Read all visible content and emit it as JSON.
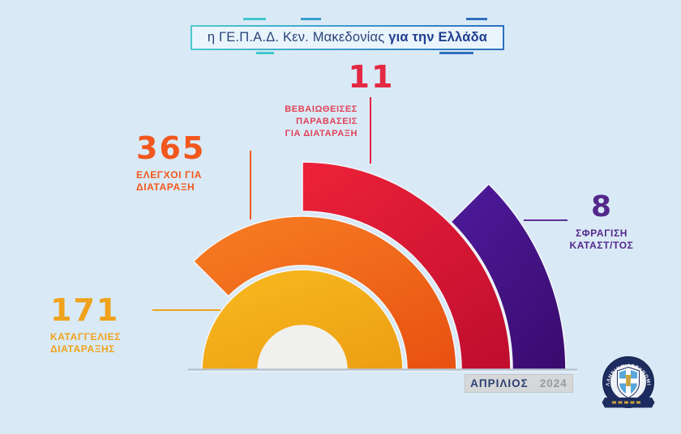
{
  "page": {
    "background": "#d9eaf6"
  },
  "title": {
    "prefix": "η ΓΕ.Π.Α.Δ. Κεν. Μακεδονίας ",
    "highlight": "για την Ελλάδα"
  },
  "metrics": [
    {
      "id": "complaints",
      "value": "171",
      "label_lines": [
        "ΚΑΤΑΓΓΕΛΙΕΣ",
        "ΔΙΑΤΑΡΑΞΗΣ"
      ],
      "color": "#f0a21c"
    },
    {
      "id": "inspections",
      "value": "365",
      "label_lines": [
        "ΕΛΕΓΧΟΙ ΓΙΑ",
        "ΔΙΑΤΑΡΑΞΗ"
      ],
      "color": "#f2571d"
    },
    {
      "id": "confirmed-violations",
      "value": "11",
      "label_lines": [
        "ΒΕΒΑΙΩΘΕΙΣΕΣ",
        "ΠΑΡΑΒΑΣΕΙΣ",
        "ΓΙΑ ΔΙΑΤΑΡΑΞΗ"
      ],
      "color": "#e32943"
    },
    {
      "id": "shop-sealings",
      "value": "8",
      "label_lines": [
        "ΣΦΡΑΓΙΣΗ",
        "ΚΑΤΑΣΤ/ΤΟΣ"
      ],
      "color": "#54288a"
    }
  ],
  "footer": {
    "month": "ΑΠΡΙΛΙΟΣ",
    "year": "2024"
  },
  "logo": {
    "label": "ΕΛΛΗΝΙΚΗ ΑΣΤΥΝΟΜΙΑ"
  },
  "chart_data": {
    "type": "pie",
    "variant": "nested-semicircle-arcs",
    "title": "η ΓΕ.Π.Α.Δ. Κεν. Μακεδονίας για την Ελλάδα",
    "period": "ΑΠΡΙΛΙΟΣ 2024",
    "legend_position": "callouts",
    "center": [
      373,
      457
    ],
    "hub": {
      "radius": 55,
      "color": "#f0f1ee"
    },
    "series": [
      {
        "id": "complaints",
        "name": "ΚΑΤΑΓΓΕΛΙΕΣ ΔΙΑΤΑΡΑΞΗΣ",
        "value": 171,
        "arc_degrees": 180,
        "inner_radius": 55,
        "outer_radius": 124,
        "color": "#f7b81e",
        "color_dark": "#eda014"
      },
      {
        "id": "inspections",
        "name": "ΕΛΕΓΧΟΙ ΓΙΑ ΔΙΑΤΑΡΑΞΗ",
        "value": 365,
        "arc_degrees": 135,
        "inner_radius": 129,
        "outer_radius": 190,
        "color": "#f67c22",
        "color_dark": "#e95312"
      },
      {
        "id": "confirmed-violations",
        "name": "ΒΕΒΑΙΩΘΕΙΣΕΣ ΠΑΡΑΒΑΣΕΙΣ ΓΙΑ ΔΙΑΤΑΡΑΞΗ",
        "value": 11,
        "arc_degrees": 90,
        "inner_radius": 196,
        "outer_radius": 257,
        "color": "#ea2138",
        "color_dark": "#c10e2f"
      },
      {
        "id": "shop-sealings",
        "name": "ΣΦΡΑΓΙΣΗ ΚΑΤΑΣΤ/ΤΟΣ",
        "value": 8,
        "arc_degrees": 45,
        "inner_radius": 259,
        "outer_radius": 325,
        "color": "#4d1a99",
        "color_dark": "#3a0c70"
      }
    ]
  }
}
